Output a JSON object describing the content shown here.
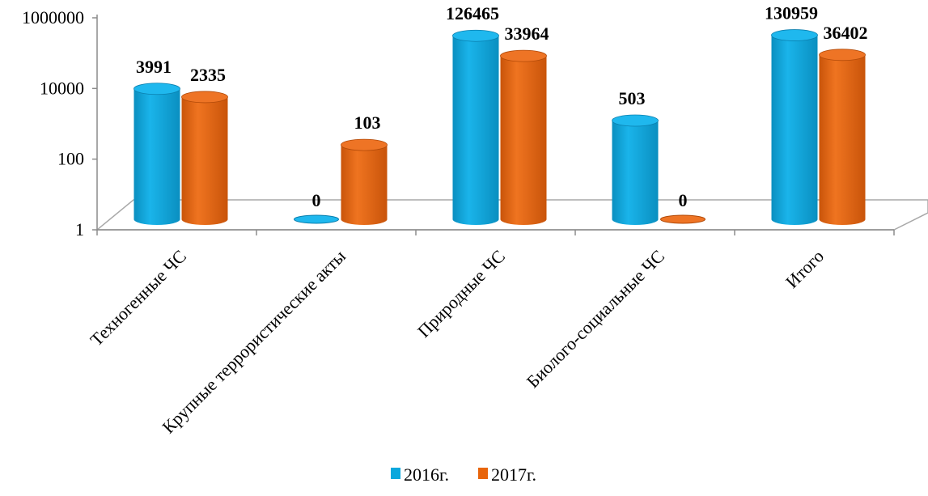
{
  "chart_data": {
    "type": "bar",
    "scale": "log",
    "ylim": [
      1,
      1000000
    ],
    "yticks": [
      "1",
      "100",
      "10000",
      "1000000"
    ],
    "ytick_values": [
      1,
      100,
      10000,
      1000000
    ],
    "categories": [
      "Техногенные ЧС",
      "Крупные террористические акты",
      "Природные ЧС",
      "Биолого-социальные ЧС",
      "Итого"
    ],
    "series": [
      {
        "name": "2016г.",
        "color": "#0aa7dd",
        "values": [
          3991,
          0,
          126465,
          503,
          130959
        ],
        "labels": [
          "3991",
          "0",
          "126465",
          "503",
          "130959"
        ]
      },
      {
        "name": "2017г.",
        "color": "#e8650c",
        "values": [
          2335,
          103,
          33964,
          0,
          36402
        ],
        "labels": [
          "2335",
          "103",
          "33964",
          "0",
          "36402"
        ]
      }
    ],
    "legend_position": "bottom",
    "grid": false,
    "title": "",
    "xlabel": "",
    "ylabel": ""
  }
}
